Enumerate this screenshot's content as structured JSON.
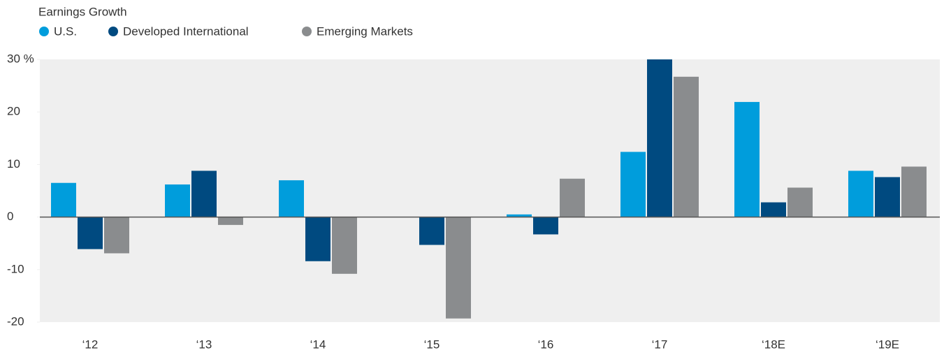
{
  "chart_data": {
    "type": "bar",
    "title": "Earnings Growth",
    "categories": [
      "‘12",
      "‘13",
      "‘14",
      "‘15",
      "‘16",
      "‘17",
      "‘18E",
      "‘19E"
    ],
    "series": [
      {
        "name": "U.S.",
        "color": "#009ddc",
        "values": [
          6.5,
          6.2,
          7.0,
          0,
          0.5,
          12.4,
          21.9,
          8.8
        ]
      },
      {
        "name": "Developed International",
        "color": "#004a80",
        "values": [
          -6.1,
          8.8,
          -8.4,
          -5.3,
          -3.3,
          30,
          2.8,
          7.6
        ]
      },
      {
        "name": "Emerging Markets",
        "color": "#8a8c8e",
        "values": [
          -6.9,
          -1.5,
          -10.8,
          -19.3,
          7.3,
          26.7,
          5.6,
          9.6
        ]
      }
    ],
    "ylim": [
      -20,
      30
    ],
    "yticks": [
      -20,
      -10,
      0,
      10,
      20,
      {
        "value": 30,
        "label": "30 %"
      }
    ]
  }
}
